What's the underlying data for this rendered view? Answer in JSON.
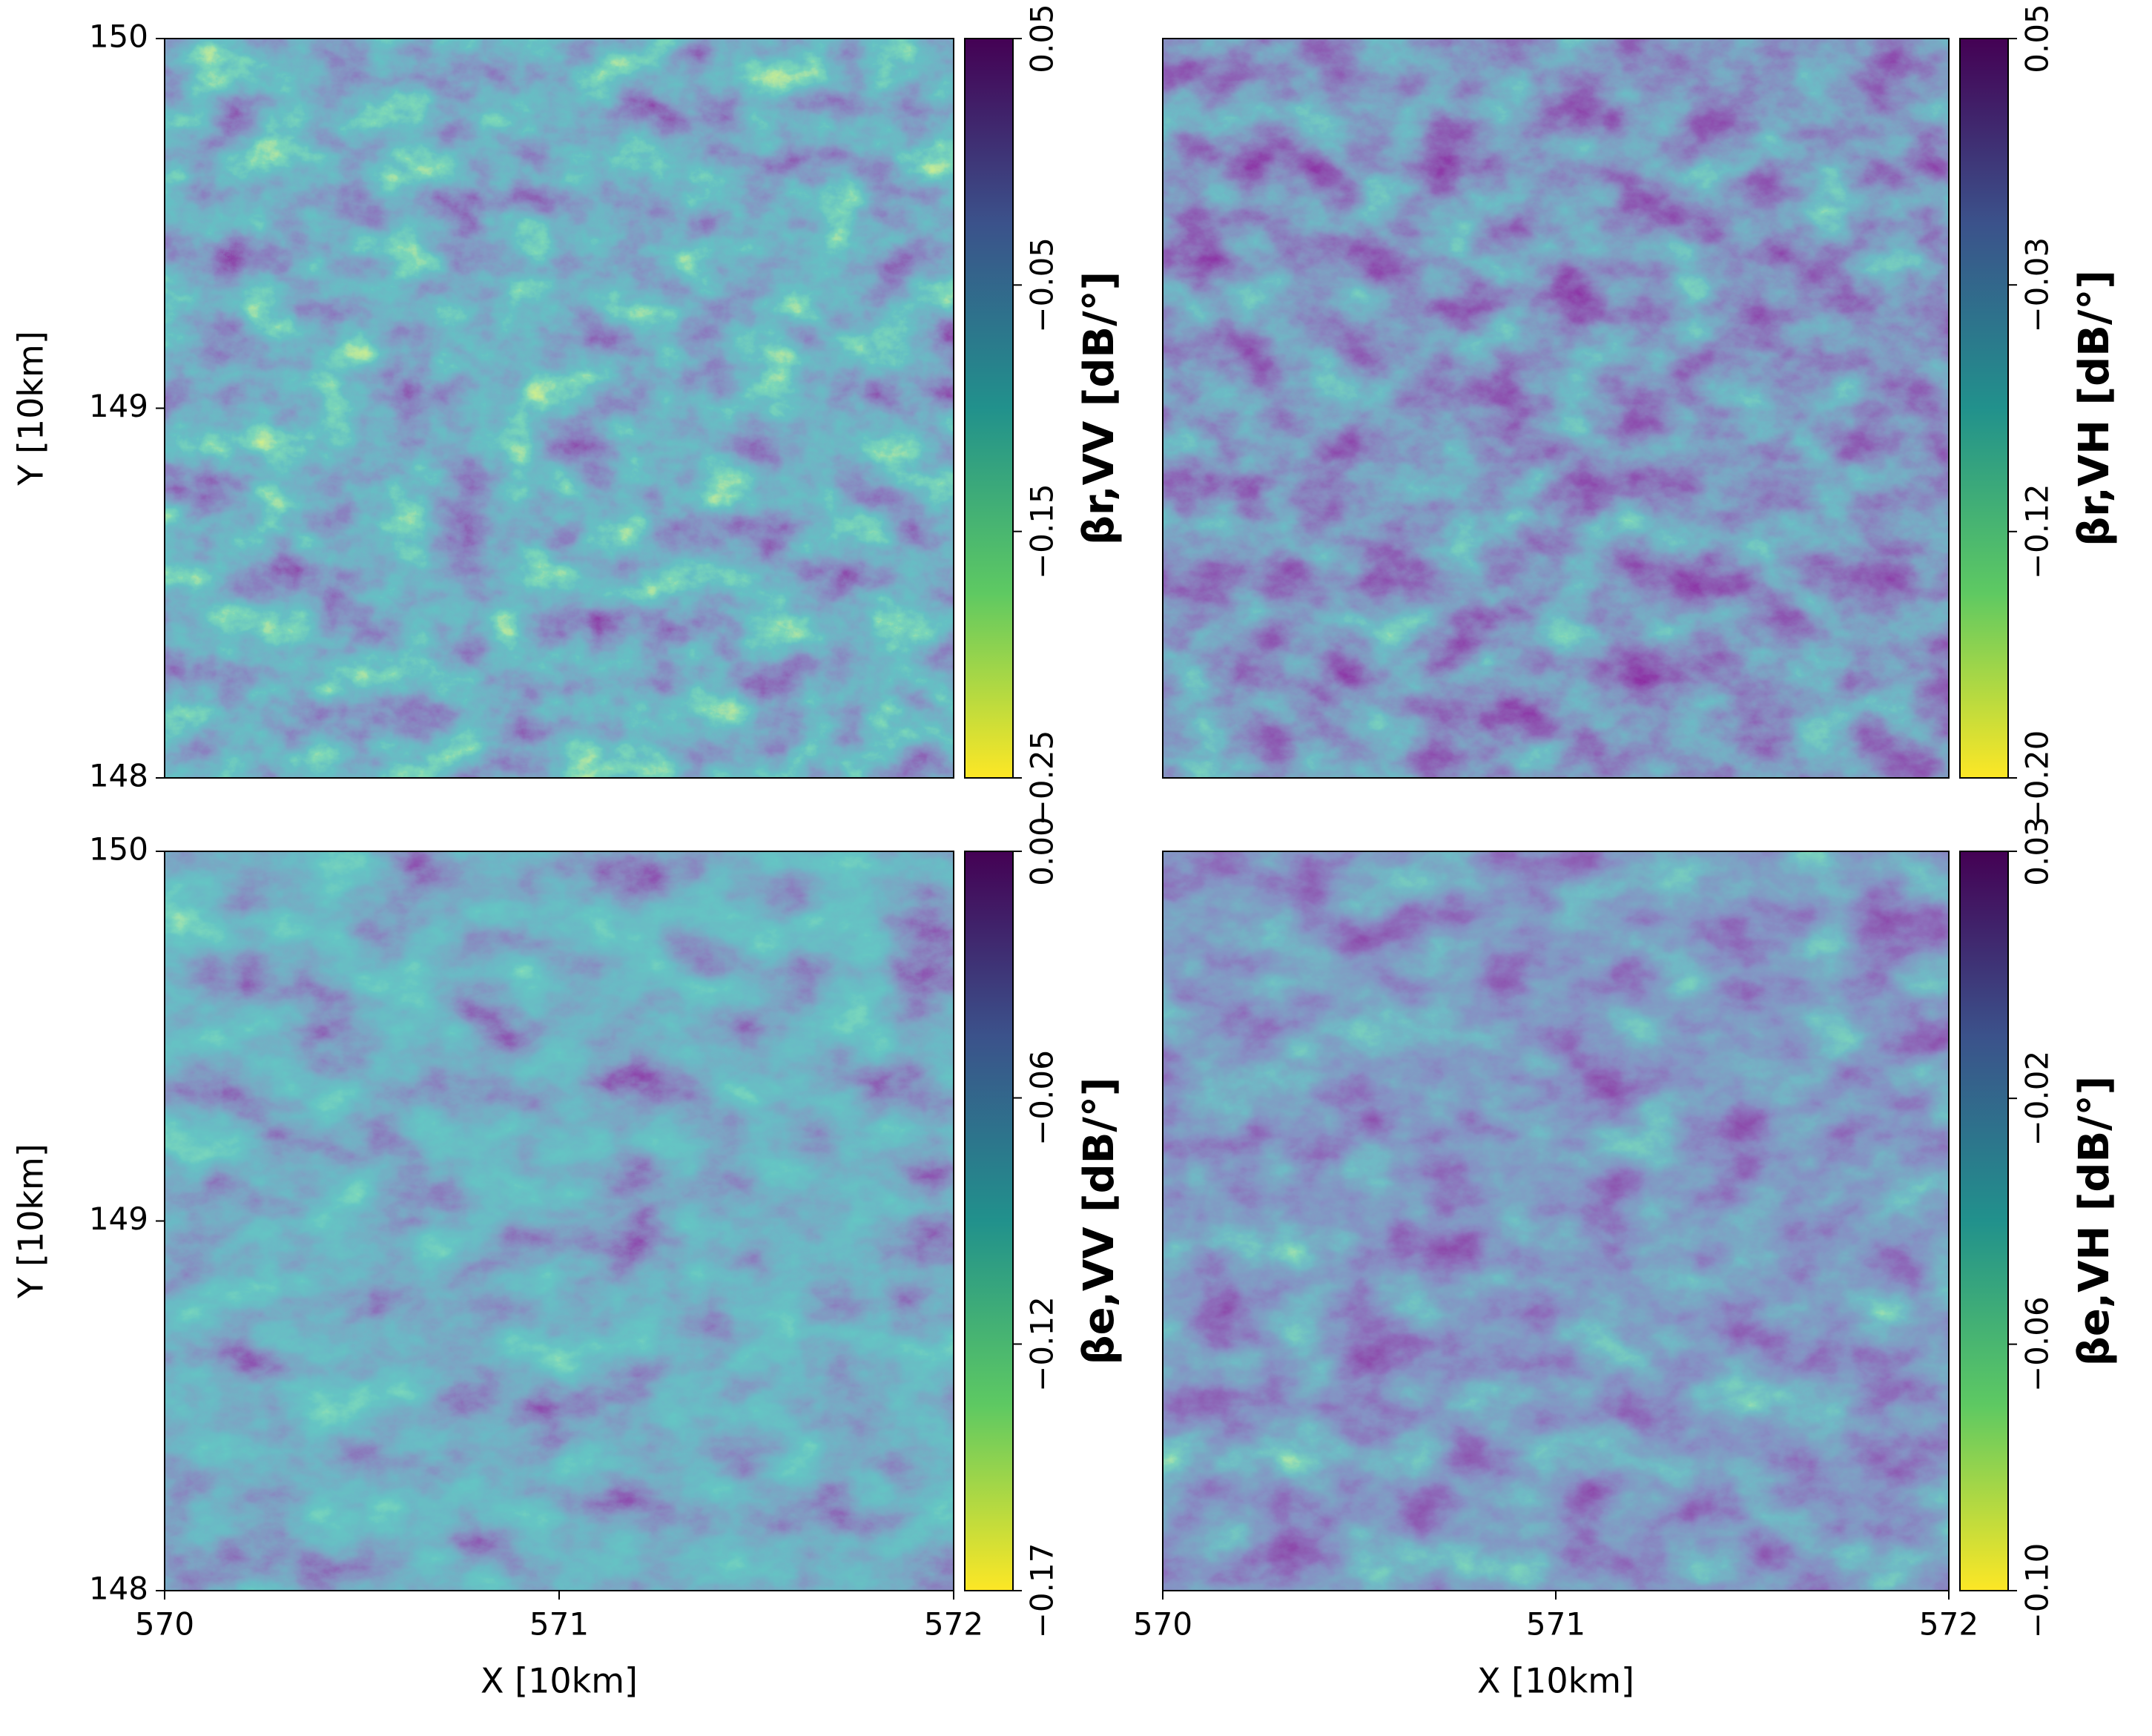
{
  "chart_data": [
    {
      "type": "heatmap",
      "xlim": [
        570,
        572
      ],
      "ylim": [
        148,
        150
      ],
      "yticks": [
        148,
        149,
        150
      ],
      "ylabel": "Y [10km]",
      "colorbar": {
        "label": "βr,VV [dB/°]",
        "lim": [
          -0.25,
          0.05
        ],
        "ticks": [
          {
            "value": -0.25,
            "label": "−0.25"
          },
          {
            "value": -0.15,
            "label": "−0.15"
          },
          {
            "value": -0.05,
            "label": "−0.05"
          },
          0.05
        ]
      }
    },
    {
      "type": "heatmap",
      "xlim": [
        570,
        572
      ],
      "ylim": [
        148,
        150
      ],
      "colorbar": {
        "label": "βr,VH [dB/°]",
        "lim": [
          -0.2,
          0.05
        ],
        "ticks": [
          {
            "value": -0.2,
            "label": "−0.20"
          },
          {
            "value": -0.1167,
            "label": "−0.12"
          },
          {
            "value": -0.0333,
            "label": "−0.03"
          },
          0.05
        ]
      }
    },
    {
      "type": "heatmap",
      "xlim": [
        570,
        572
      ],
      "ylim": [
        148,
        150
      ],
      "xticks": [
        570,
        571,
        572
      ],
      "yticks": [
        148,
        149,
        150
      ],
      "xlabel": "X [10km]",
      "ylabel": "Y [10km]",
      "colorbar": {
        "label": "βe,VV [dB/°]",
        "lim": [
          -0.1745,
          0
        ],
        "ticks": [
          {
            "value": -0.1745,
            "label": "−0.17"
          },
          {
            "value": -0.1163,
            "label": "−0.12"
          },
          {
            "value": -0.0582,
            "label": "−0.06"
          },
          {
            "value": 0,
            "label": "0.00"
          }
        ]
      }
    },
    {
      "type": "heatmap",
      "xlim": [
        570,
        572
      ],
      "ylim": [
        148,
        150
      ],
      "xticks": [
        570,
        571,
        572
      ],
      "xlabel": "X [10km]",
      "colorbar": {
        "label": "βe,VH [dB/°]",
        "lim": [
          -0.1,
          0.0254
        ],
        "ticks": [
          {
            "value": -0.1,
            "label": "−0.10"
          },
          {
            "value": -0.0582,
            "label": "−0.06"
          },
          {
            "value": -0.0165,
            "label": "−0.02"
          },
          {
            "value": 0.0254,
            "label": "0.03"
          }
        ]
      }
    }
  ]
}
